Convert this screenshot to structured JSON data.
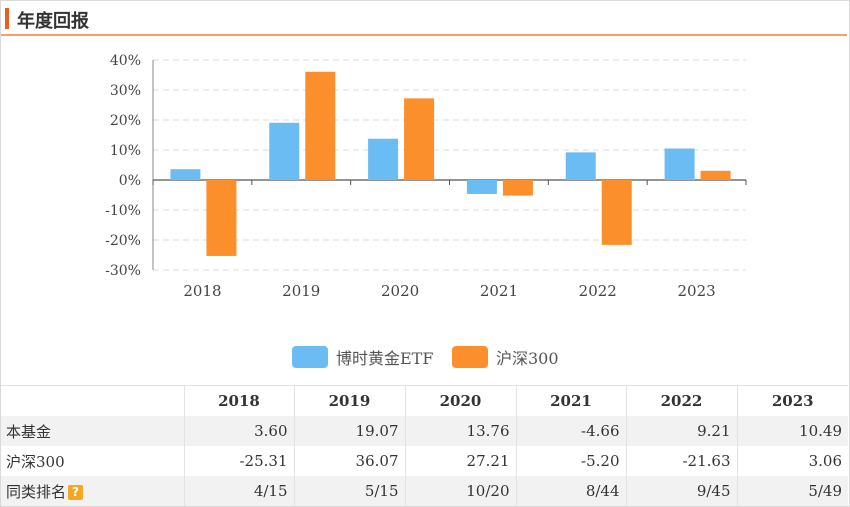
{
  "section_title": "年度回报",
  "colors": {
    "fund": "#6cbcf4",
    "index": "#fb8f2c",
    "accent": "#e8601c"
  },
  "chart_data": {
    "type": "bar",
    "categories": [
      "2018",
      "2019",
      "2020",
      "2021",
      "2022",
      "2023"
    ],
    "series": [
      {
        "name": "博时黄金ETF",
        "values": [
          3.6,
          19.07,
          13.76,
          -4.66,
          9.21,
          10.49
        ]
      },
      {
        "name": "沪深300",
        "values": [
          -25.31,
          36.07,
          27.21,
          -5.2,
          -21.63,
          3.06
        ]
      }
    ],
    "ylim": [
      -30,
      40
    ],
    "yticks": [
      "40%",
      "30%",
      "20%",
      "10%",
      "0%",
      "-10%",
      "-20%",
      "-30%"
    ],
    "ytick_values": [
      40,
      30,
      20,
      10,
      0,
      -10,
      -20,
      -30
    ],
    "grid": true,
    "legend": "bottom"
  },
  "table": {
    "headers": [
      "",
      "2018",
      "2019",
      "2020",
      "2021",
      "2022",
      "2023"
    ],
    "rows": [
      {
        "label": "本基金",
        "cells": [
          "3.60",
          "19.07",
          "13.76",
          "-4.66",
          "9.21",
          "10.49"
        ]
      },
      {
        "label": "沪深300",
        "cells": [
          "-25.31",
          "36.07",
          "27.21",
          "-5.20",
          "-21.63",
          "3.06"
        ]
      },
      {
        "label": "同类排名",
        "help": "?",
        "cells": [
          "4/15",
          "5/15",
          "10/20",
          "8/44",
          "9/45",
          "5/49"
        ]
      }
    ]
  }
}
